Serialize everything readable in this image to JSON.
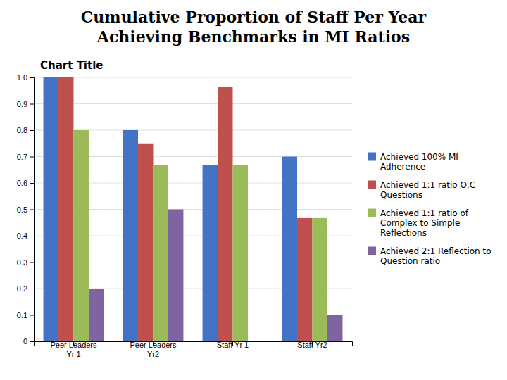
{
  "chart_data": {
    "type": "bar",
    "title": "Cumulative Proportion of Staff Per Year\nAchieving Benchmarks in MI Ratios",
    "subtitle": "Chart Title",
    "categories": [
      "Peer Leaders\nYr 1",
      "Peer Leaders\nYr2",
      "Staff Yr 1",
      "Staff Yr2"
    ],
    "series": [
      {
        "name": "Achieved 100% MI\nAdherence",
        "values": [
          1.0,
          0.8,
          0.667,
          0.7
        ],
        "color": "#4472C4"
      },
      {
        "name": "Achieved 1:1 ratio O:C\nQuestions",
        "values": [
          1.0,
          0.75,
          0.963,
          0.467
        ],
        "color": "#C0504D"
      },
      {
        "name": "Achieved 1:1 ratio of\nComplex to Simple\nReflections",
        "values": [
          0.8,
          0.667,
          0.667,
          0.467
        ],
        "color": "#9BBB59"
      },
      {
        "name": "Achieved 2:1 Reflection to\nQuestion ratio",
        "values": [
          0.2,
          0.5,
          0.0,
          0.1
        ],
        "color": "#8064A2"
      }
    ],
    "ylim": [
      0,
      1.0
    ],
    "yticks": [
      0,
      0.1,
      0.2,
      0.3,
      0.4,
      0.5,
      0.6,
      0.7,
      0.8,
      0.9,
      {
        "value": 1.0,
        "label": "1.0"
      }
    ],
    "grid": true,
    "legend": "right"
  }
}
